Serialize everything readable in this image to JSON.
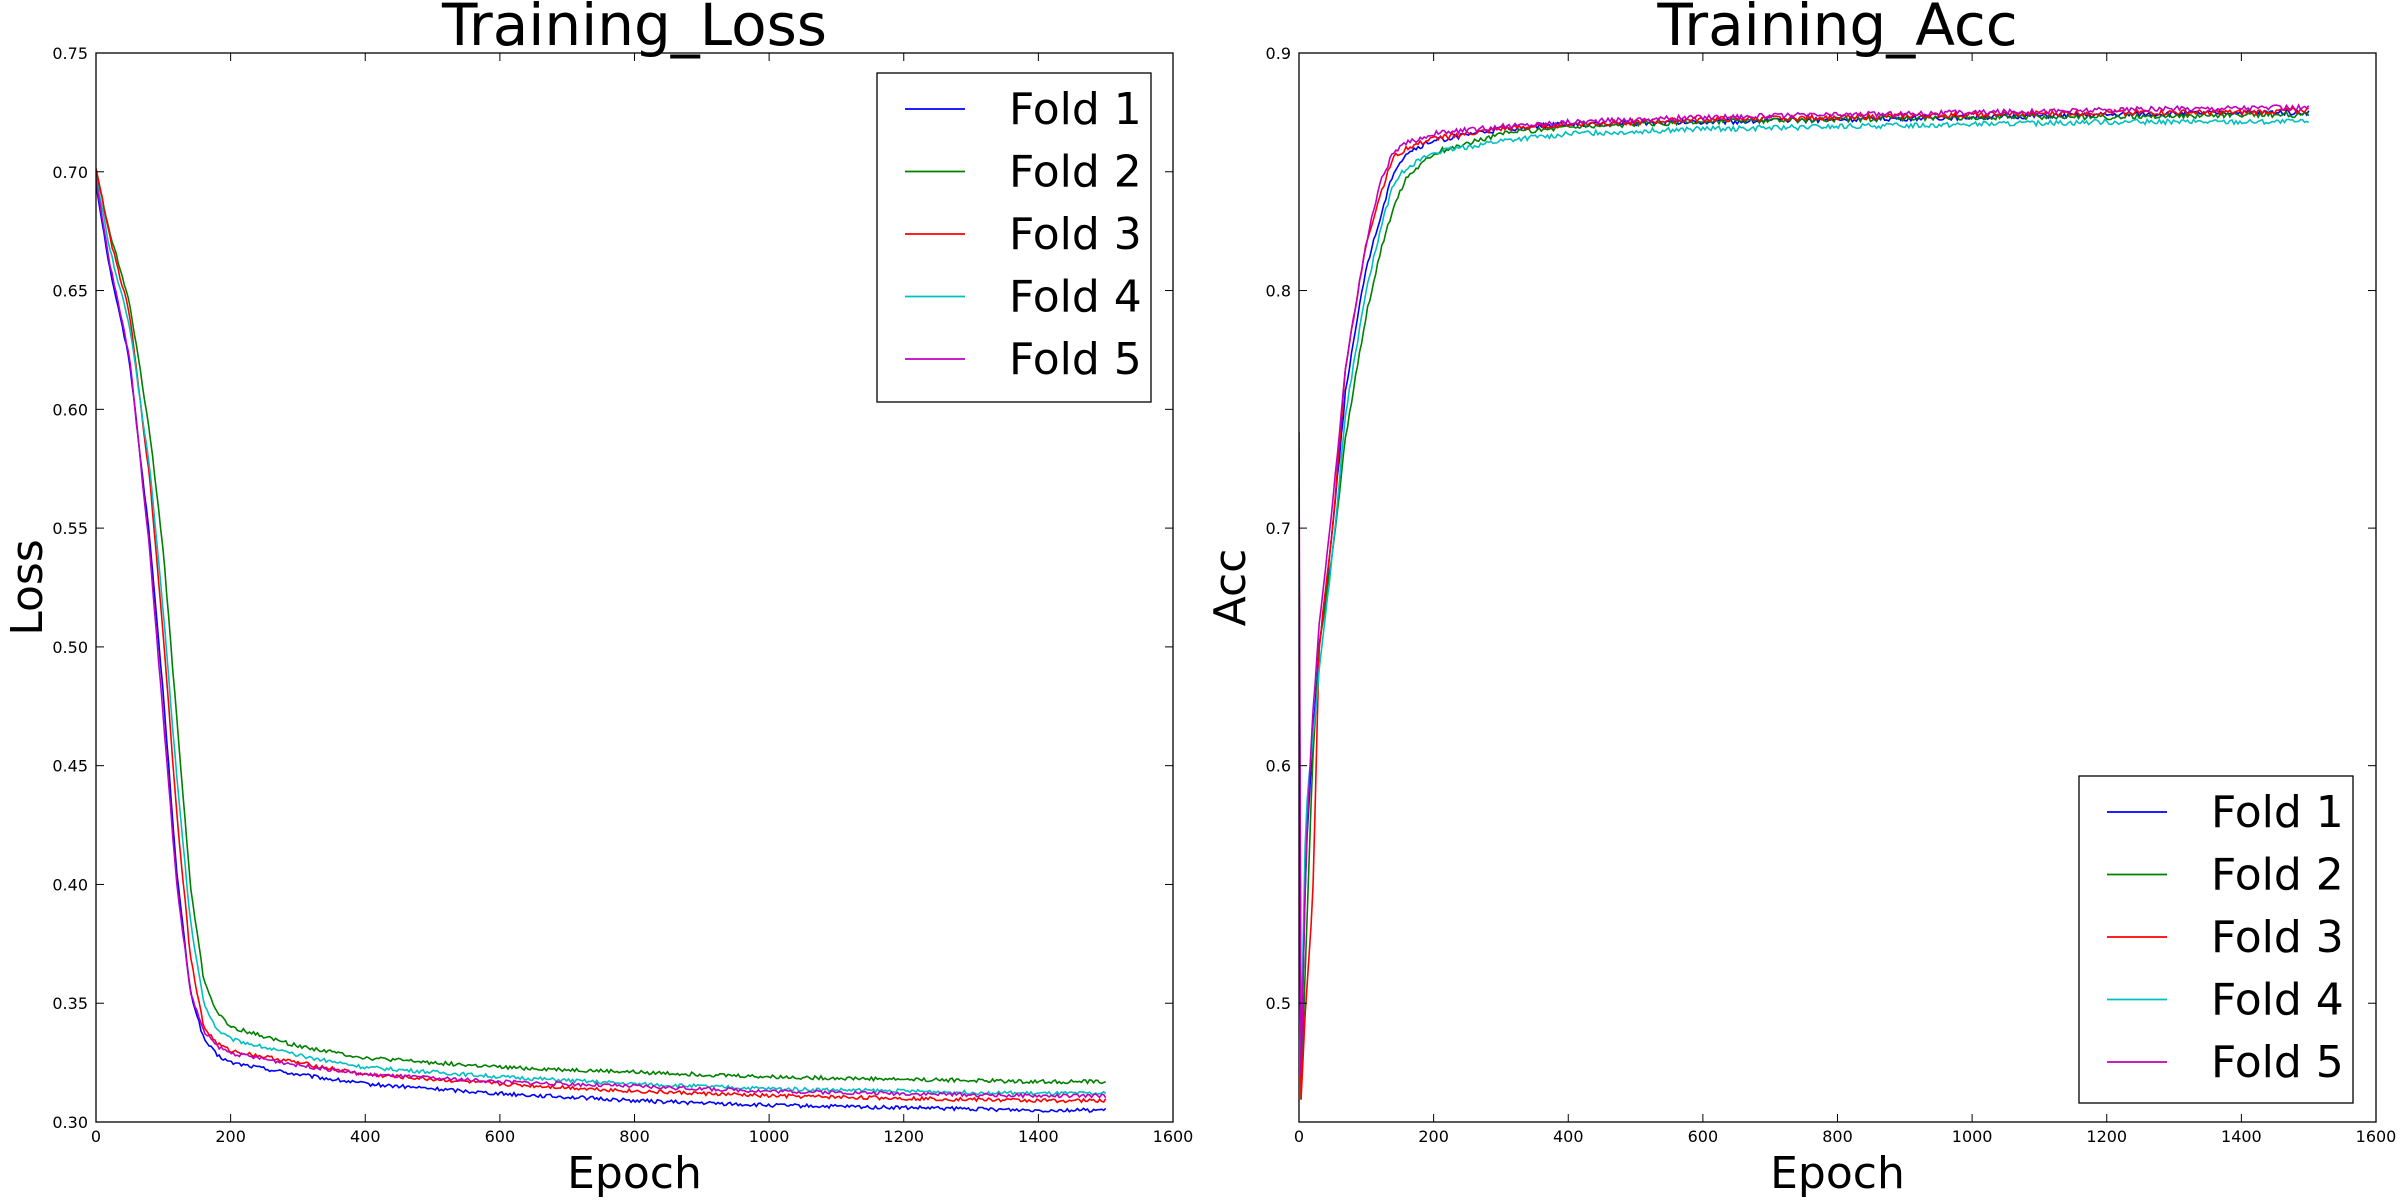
{
  "chart_data": [
    {
      "type": "line",
      "title": "Training_Loss",
      "xlabel": "Epoch",
      "ylabel": "Loss",
      "xlim": [
        0,
        1600
      ],
      "ylim": [
        0.3,
        0.75
      ],
      "xticks": [
        "0",
        "200",
        "400",
        "600",
        "800",
        "1000",
        "1200",
        "1400",
        "1600"
      ],
      "yticks": [
        "0.30",
        "0.35",
        "0.40",
        "0.45",
        "0.50",
        "0.55",
        "0.60",
        "0.65",
        "0.70",
        "0.75"
      ],
      "legend_position": "upper-right",
      "grid": false,
      "x": [
        0,
        20,
        50,
        80,
        100,
        120,
        140,
        160,
        180,
        200,
        300,
        400,
        600,
        800,
        1000,
        1200,
        1400,
        1500
      ],
      "series": [
        {
          "name": "Fold 1",
          "color": "#0000ff",
          "values": [
            0.695,
            0.66,
            0.62,
            0.545,
            0.48,
            0.405,
            0.355,
            0.335,
            0.328,
            0.325,
            0.32,
            0.316,
            0.312,
            0.309,
            0.307,
            0.306,
            0.305,
            0.305
          ]
        },
        {
          "name": "Fold 2",
          "color": "#008000",
          "values": [
            0.7,
            0.675,
            0.645,
            0.59,
            0.54,
            0.47,
            0.4,
            0.36,
            0.346,
            0.34,
            0.332,
            0.327,
            0.323,
            0.321,
            0.319,
            0.318,
            0.317,
            0.317
          ]
        },
        {
          "name": "Fold 3",
          "color": "#ff0000",
          "values": [
            0.702,
            0.673,
            0.64,
            0.57,
            0.505,
            0.43,
            0.37,
            0.34,
            0.333,
            0.33,
            0.325,
            0.32,
            0.316,
            0.313,
            0.311,
            0.31,
            0.309,
            0.309
          ]
        },
        {
          "name": "Fold 4",
          "color": "#00bfbf",
          "values": [
            0.698,
            0.668,
            0.635,
            0.575,
            0.515,
            0.445,
            0.385,
            0.35,
            0.339,
            0.335,
            0.328,
            0.323,
            0.319,
            0.316,
            0.314,
            0.313,
            0.312,
            0.312
          ]
        },
        {
          "name": "Fold 5",
          "color": "#bf00bf",
          "values": [
            0.696,
            0.662,
            0.622,
            0.54,
            0.47,
            0.4,
            0.355,
            0.338,
            0.332,
            0.329,
            0.324,
            0.32,
            0.317,
            0.315,
            0.313,
            0.312,
            0.311,
            0.311
          ]
        }
      ]
    },
    {
      "type": "line",
      "title": "Training_Acc",
      "xlabel": "Epoch",
      "ylabel": "Acc",
      "xlim": [
        0,
        1600
      ],
      "ylim": [
        0.45,
        0.9
      ],
      "xticks": [
        "0",
        "200",
        "400",
        "600",
        "800",
        "1000",
        "1200",
        "1400",
        "1600"
      ],
      "yticks": [
        "0.5",
        "0.6",
        "0.7",
        "0.8",
        "0.9"
      ],
      "legend_position": "lower-right",
      "grid": false,
      "x": [
        0,
        3,
        10,
        20,
        30,
        50,
        70,
        100,
        120,
        140,
        160,
        200,
        300,
        400,
        600,
        800,
        1000,
        1200,
        1400,
        1500
      ],
      "series": [
        {
          "name": "Fold 1",
          "color": "#0000ff",
          "values": [
            0.7,
            0.47,
            0.56,
            0.61,
            0.65,
            0.7,
            0.76,
            0.81,
            0.83,
            0.85,
            0.858,
            0.863,
            0.868,
            0.87,
            0.871,
            0.872,
            0.873,
            0.874,
            0.875,
            0.875
          ]
        },
        {
          "name": "Fold 2",
          "color": "#008000",
          "values": [
            0.7,
            0.46,
            0.52,
            0.6,
            0.65,
            0.69,
            0.74,
            0.79,
            0.815,
            0.835,
            0.848,
            0.858,
            0.866,
            0.869,
            0.871,
            0.872,
            0.873,
            0.873,
            0.874,
            0.874
          ]
        },
        {
          "name": "Fold 3",
          "color": "#ff0000",
          "values": [
            0.7,
            0.46,
            0.5,
            0.54,
            0.65,
            0.7,
            0.77,
            0.82,
            0.84,
            0.856,
            0.86,
            0.864,
            0.868,
            0.87,
            0.872,
            0.873,
            0.874,
            0.875,
            0.875,
            0.876
          ]
        },
        {
          "name": "Fold 4",
          "color": "#00bfbf",
          "values": [
            0.7,
            0.48,
            0.58,
            0.61,
            0.64,
            0.69,
            0.75,
            0.8,
            0.825,
            0.845,
            0.852,
            0.858,
            0.863,
            0.866,
            0.868,
            0.869,
            0.87,
            0.871,
            0.871,
            0.871
          ]
        },
        {
          "name": "Fold 5",
          "color": "#bf00bf",
          "values": [
            0.74,
            0.47,
            0.56,
            0.62,
            0.66,
            0.71,
            0.77,
            0.82,
            0.845,
            0.858,
            0.862,
            0.866,
            0.869,
            0.871,
            0.873,
            0.874,
            0.875,
            0.876,
            0.877,
            0.877
          ]
        }
      ]
    }
  ]
}
